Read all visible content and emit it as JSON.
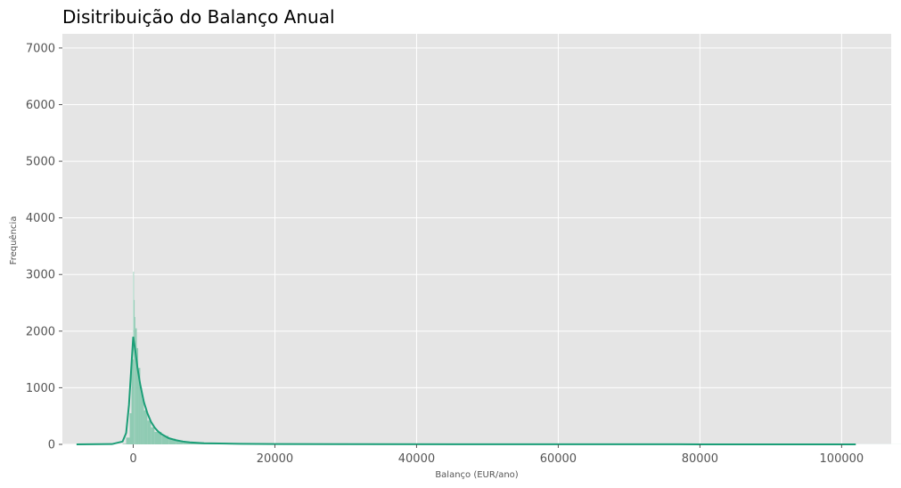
{
  "chart_data": {
    "type": "histogram",
    "title": "Disitribuição do Balanço Anual",
    "xlabel": "Balanço (EUR/ano)",
    "ylabel": "Frequência",
    "xlim": [
      -10000,
      107000
    ],
    "ylim": [
      0,
      7250
    ],
    "xticks": [
      0,
      20000,
      40000,
      60000,
      80000,
      100000
    ],
    "yticks": [
      0,
      1000,
      2000,
      3000,
      4000,
      5000,
      6000,
      7000
    ],
    "grid": true,
    "background_color": "#e5e5e5",
    "grid_color": "#ffffff",
    "bar_color": "#8fcbb3",
    "kde_color": "#1b9e77",
    "bins": {
      "x": [
        -1500,
        -1000,
        -500,
        -250,
        0,
        100,
        200,
        300,
        500,
        700,
        1000,
        1250,
        1500,
        2000,
        2500,
        3000,
        4000,
        5000,
        6000,
        7000,
        8000,
        10000,
        15000,
        20000,
        30000,
        50000,
        80000,
        102000
      ],
      "counts": [
        10,
        120,
        550,
        1500,
        3050,
        2550,
        2250,
        2050,
        1700,
        1350,
        1000,
        800,
        600,
        420,
        300,
        220,
        150,
        100,
        70,
        50,
        35,
        20,
        12,
        8,
        5,
        3,
        2,
        1
      ]
    },
    "kde": {
      "x": [
        -8000,
        -3000,
        -1500,
        -1000,
        -600,
        -300,
        0,
        300,
        600,
        1000,
        1500,
        2000,
        2500,
        3000,
        3500,
        4000,
        5000,
        6000,
        7000,
        8000,
        10000,
        15000,
        20000,
        30000,
        50000,
        80000,
        102000
      ],
      "y": [
        0,
        5,
        50,
        200,
        700,
        1300,
        1900,
        1650,
        1350,
        1050,
        750,
        550,
        400,
        300,
        230,
        180,
        110,
        75,
        50,
        35,
        20,
        10,
        6,
        4,
        2,
        1,
        0
      ]
    }
  }
}
